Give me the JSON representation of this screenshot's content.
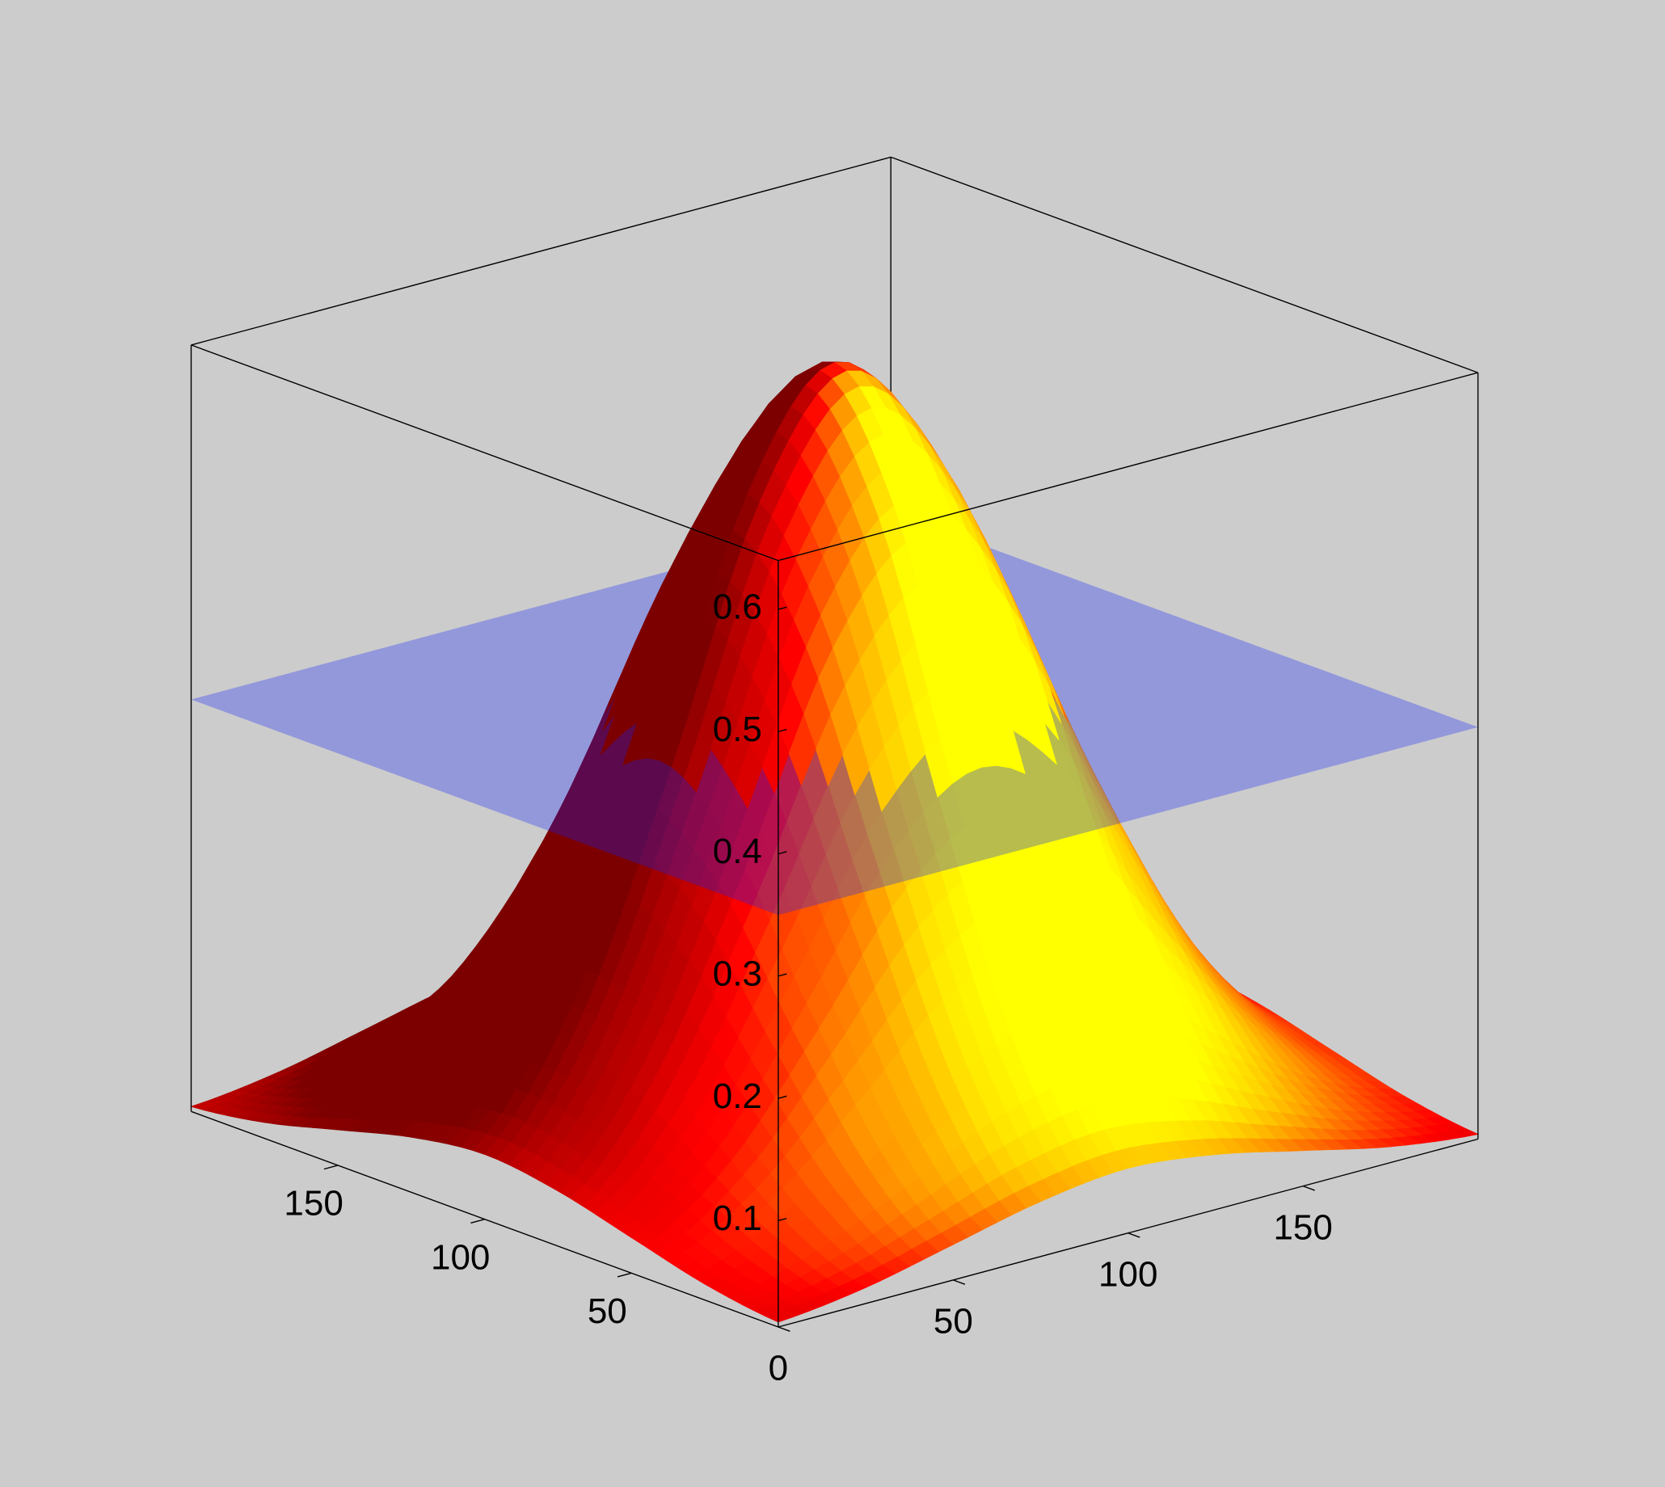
{
  "chart_data": {
    "type": "surface",
    "colormap": "hot",
    "x": [
      0,
      25,
      50,
      75,
      100,
      125,
      150,
      175,
      200
    ],
    "y": [
      0,
      25,
      50,
      75,
      100,
      125,
      150,
      175,
      200
    ],
    "z": [
      [
        0.017,
        0.026,
        0.042,
        0.058,
        0.066,
        0.058,
        0.042,
        0.026,
        0.017
      ],
      [
        0.026,
        0.052,
        0.097,
        0.146,
        0.169,
        0.146,
        0.097,
        0.052,
        0.026
      ],
      [
        0.042,
        0.097,
        0.195,
        0.301,
        0.35,
        0.301,
        0.195,
        0.097,
        0.042
      ],
      [
        0.058,
        0.146,
        0.301,
        0.471,
        0.548,
        0.471,
        0.301,
        0.146,
        0.058
      ],
      [
        0.066,
        0.169,
        0.35,
        0.548,
        0.637,
        0.548,
        0.35,
        0.169,
        0.066
      ],
      [
        0.058,
        0.146,
        0.301,
        0.471,
        0.548,
        0.471,
        0.301,
        0.146,
        0.058
      ],
      [
        0.042,
        0.097,
        0.195,
        0.301,
        0.35,
        0.301,
        0.195,
        0.097,
        0.042
      ],
      [
        0.026,
        0.052,
        0.097,
        0.146,
        0.169,
        0.146,
        0.097,
        0.052,
        0.026
      ],
      [
        0.017,
        0.026,
        0.042,
        0.058,
        0.066,
        0.058,
        0.042,
        0.026,
        0.017
      ]
    ],
    "xlim": [
      0,
      200
    ],
    "ylim": [
      0,
      200
    ],
    "zlim": [
      0.013,
      0.64
    ],
    "xticks": [
      0,
      50,
      100,
      150
    ],
    "yticks": [
      50,
      100,
      150
    ],
    "zticks": [
      0.1,
      0.2,
      0.3,
      0.4,
      0.5,
      0.6
    ],
    "plane": {
      "z": 0.35,
      "color": "#1020ff"
    }
  }
}
